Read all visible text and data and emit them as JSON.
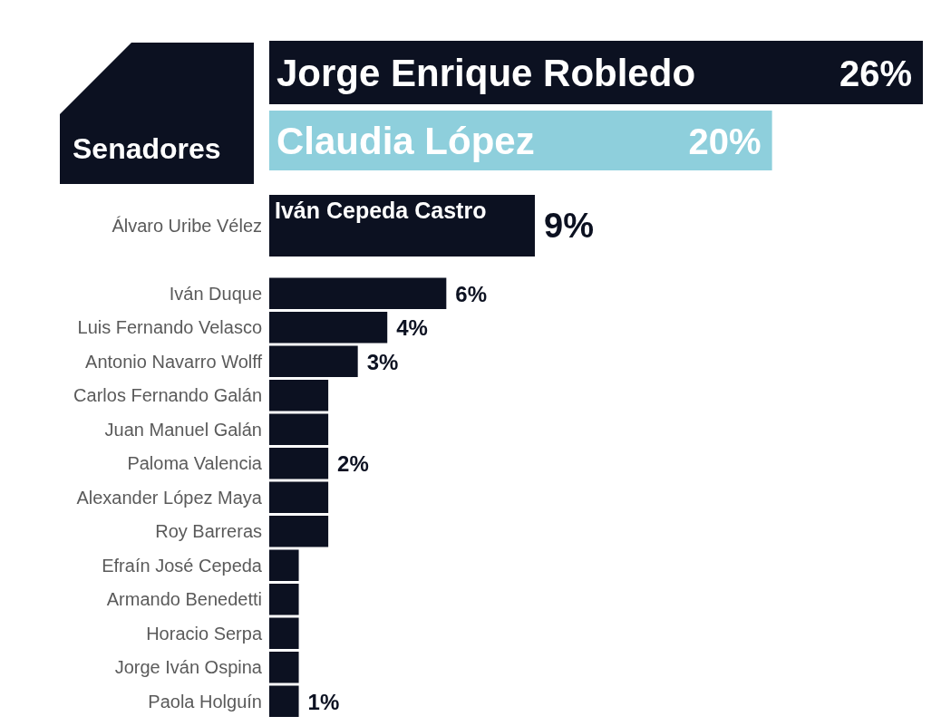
{
  "chart_data": [
    {
      "type": "bar",
      "orientation": "horizontal",
      "title": "Senadores",
      "categories": [
        "Jorge Enrique Robledo",
        "Claudia López"
      ],
      "values": [
        26,
        20
      ],
      "value_labels": [
        "26%",
        "20%"
      ],
      "colors": [
        "#0c1121",
        "#8ecfdc"
      ]
    },
    {
      "type": "bar",
      "orientation": "horizontal",
      "categories": [
        "Álvaro Uribe Vélez",
        "Iván Duque",
        "Luis Fernando Velasco",
        "Antonio Navarro Wolff",
        "Carlos Fernando Galán",
        "Juan Manuel Galán",
        "Paloma Valencia",
        "Alexander López Maya",
        "Roy Barreras",
        "Efraín José Cepeda",
        "Armando Benedetti",
        "Horacio Serpa",
        "Jorge Iván Ospina",
        "Paola Holguín"
      ],
      "values": [
        9,
        6,
        4,
        3,
        2,
        2,
        2,
        2,
        2,
        1,
        1,
        1,
        1,
        1
      ],
      "value_labels": [
        "9%",
        "6%",
        "4%",
        "3%",
        null,
        null,
        "2%",
        null,
        null,
        null,
        null,
        null,
        null,
        "1%"
      ],
      "colors": [
        "#0c1121",
        "#0c1121",
        "#0c1121",
        "#0c1121",
        "#0c1121",
        "#0c1121",
        "#0c1121",
        "#0c1121",
        "#0c1121",
        "#0c1121",
        "#0c1121",
        "#0c1121",
        "#0c1121",
        "#0c1121"
      ],
      "annotations": [
        "Iván Cepeda Castro"
      ]
    }
  ]
}
